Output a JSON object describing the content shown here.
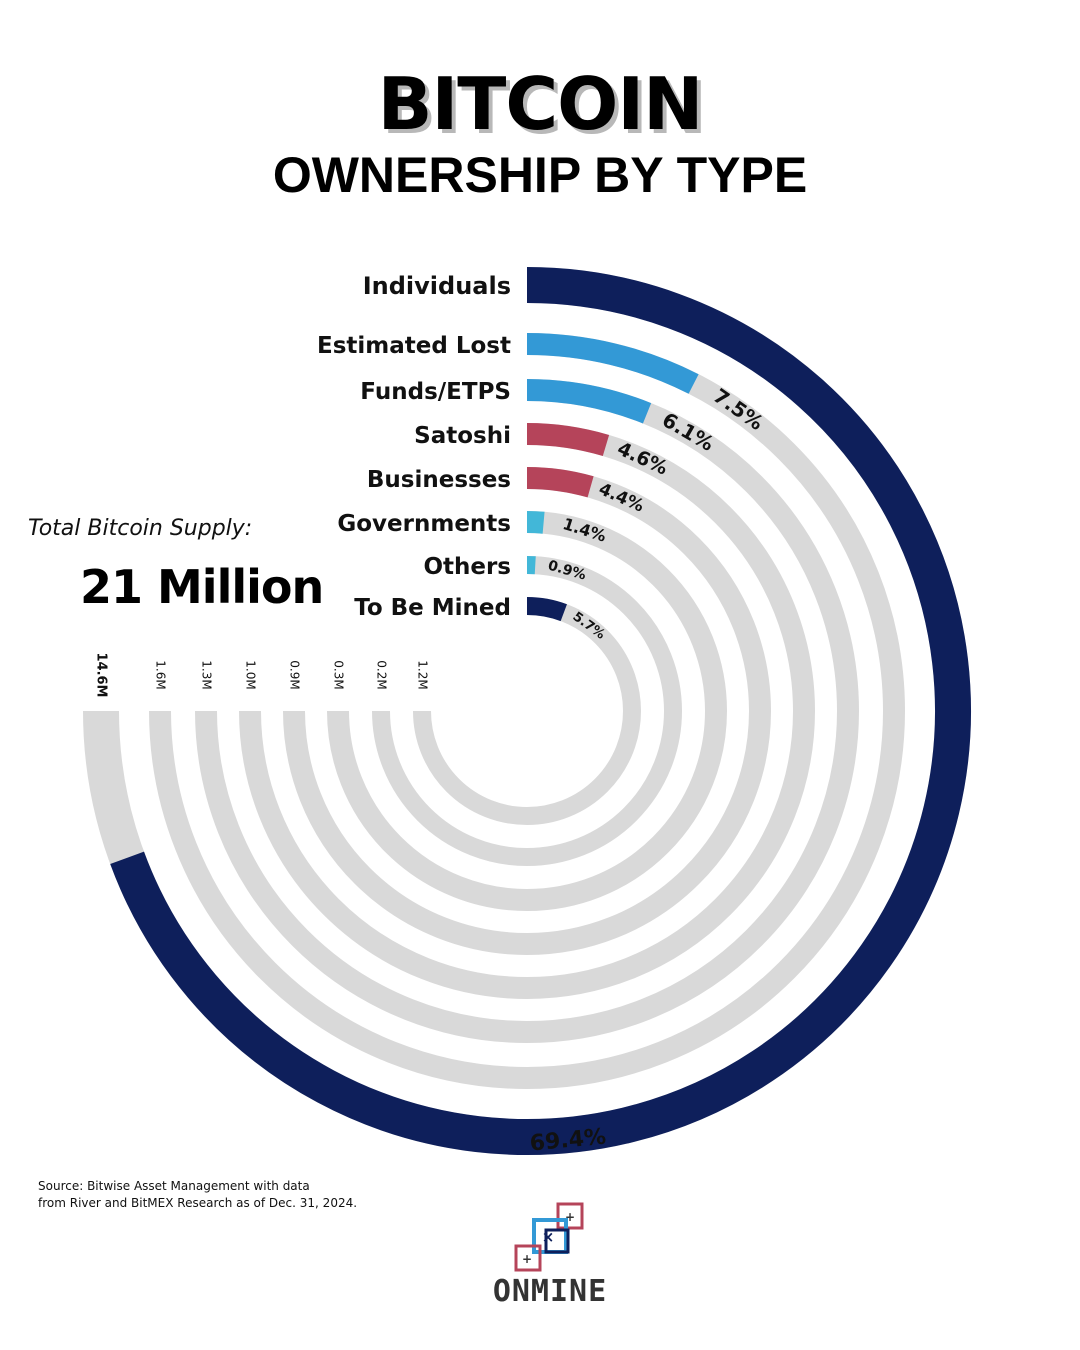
{
  "header": {
    "title": "BITCOIN",
    "subtitle": "OWNERSHIP BY TYPE"
  },
  "supply": {
    "label": "Total Bitcoin Supply:",
    "value": "21 Million"
  },
  "source": {
    "line1": "Source: Bitwise Asset Management with data",
    "line2": "from River and BitMEX Research as of Dec. 31, 2024."
  },
  "logo": {
    "name": "ONMINE",
    "icon": "overlapping-squares-logo-icon"
  },
  "colors": {
    "navy": "#0e1f5b",
    "blue": "#3399d6",
    "red": "#b5445a",
    "cyan": "#42b7d8",
    "track": "#d9d9d9"
  },
  "chart_data": {
    "type": "radial-bar",
    "total_label": "21 Million",
    "categories": [
      "Individuals",
      "Estimated Lost",
      "Funds/ETPS",
      "Satoshi",
      "Businesses",
      "Governments",
      "Others",
      "To Be Mined"
    ],
    "values_pct": [
      69.4,
      7.5,
      6.1,
      4.6,
      4.4,
      1.4,
      0.9,
      5.7
    ],
    "pct_labels": [
      "69.4%",
      "7.5%",
      "6.1%",
      "4.6%",
      "4.4%",
      "1.4%",
      "0.9%",
      "5.7%"
    ],
    "amount_labels": [
      "14.6M",
      "1.6M",
      "1.3M",
      "1.0M",
      "0.9M",
      "0.3M",
      "0.2M",
      "1.2M"
    ],
    "colors": [
      "#0e1f5b",
      "#3399d6",
      "#3399d6",
      "#b5445a",
      "#b5445a",
      "#42b7d8",
      "#42b7d8",
      "#0e1f5b"
    ],
    "full_scale_pct": 75
  }
}
